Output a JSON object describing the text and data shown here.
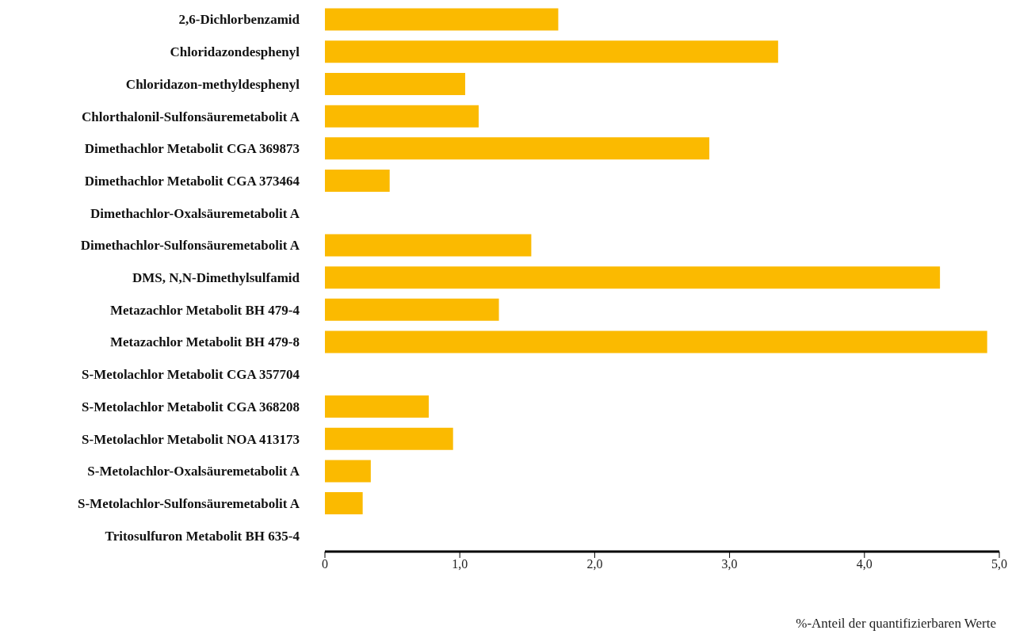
{
  "chart_data": {
    "type": "bar",
    "orientation": "horizontal",
    "xlabel": "%-Anteil der quantifizierbaren Werte",
    "categories": [
      "2,6-Dichlorbenzamid",
      "Chloridazondesphenyl",
      "Chloridazon-methyldesphenyl",
      "Chlorthalonil-Sulfonsäuremetabolit A",
      "Dimethachlor Metabolit CGA 369873",
      "Dimethachlor Metabolit CGA 373464",
      "Dimethachlor-Oxalsäuremetabolit A",
      "Dimethachlor-Sulfonsäuremetabolit A",
      "DMS, N,N-Dimethylsulfamid",
      "Metazachlor Metabolit BH 479-4",
      "Metazachlor Metabolit BH 479-8",
      "S-Metolachlor Metabolit CGA 357704",
      "S-Metolachlor Metabolit CGA 368208",
      "S-Metolachlor Metabolit NOA 413173",
      "S-Metolachlor-Oxalsäuremetabolit A",
      "S-Metolachlor-Sulfonsäuremetabolit A",
      "Tritosulfuron Metabolit BH 635-4"
    ],
    "values": [
      1.73,
      3.36,
      1.04,
      1.14,
      2.85,
      0.48,
      0,
      1.53,
      4.56,
      1.29,
      4.91,
      0,
      0.77,
      0.95,
      0.34,
      0.28,
      0
    ],
    "color": "#fbba00",
    "xlim": [
      0,
      5
    ],
    "xticks": [
      0,
      {
        "value": 1,
        "label": "1,0"
      },
      {
        "value": 2,
        "label": "2,0"
      },
      {
        "value": 3,
        "label": "3,0"
      },
      {
        "value": 4,
        "label": "4,0"
      },
      {
        "value": 5,
        "label": "5,0"
      }
    ],
    "grid": false,
    "legend": false
  }
}
